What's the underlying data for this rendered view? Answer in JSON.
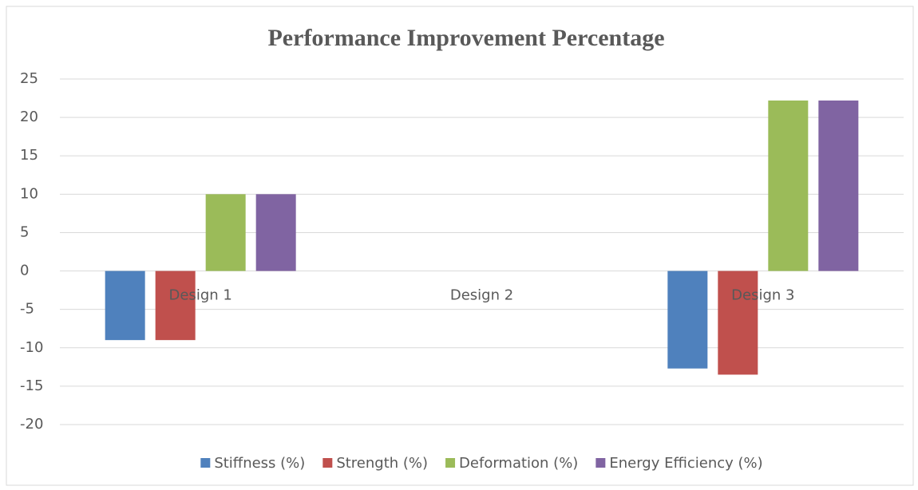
{
  "chart_data": {
    "type": "bar",
    "title": "Performance Improvement Percentage",
    "categories": [
      "Design 1",
      "Design 2",
      "Design 3"
    ],
    "series": [
      {
        "name": "Stiffness (%)",
        "color": "#4f81bd",
        "values": [
          -9.0,
          0,
          -12.7
        ]
      },
      {
        "name": "Strength (%)",
        "color": "#c0504d",
        "values": [
          -9.0,
          0,
          -13.5
        ]
      },
      {
        "name": "Deformation (%)",
        "color": "#9bbb59",
        "values": [
          10,
          0,
          22.2
        ]
      },
      {
        "name": "Energy Efficiency (%)",
        "color": "#8064a2",
        "values": [
          10,
          0,
          22.2
        ]
      }
    ],
    "ylim": [
      -20,
      25
    ],
    "yticks": [
      -20,
      -15,
      -10,
      -5,
      0,
      5,
      10,
      15,
      20,
      25
    ],
    "grid": true,
    "legend": "bottom"
  }
}
